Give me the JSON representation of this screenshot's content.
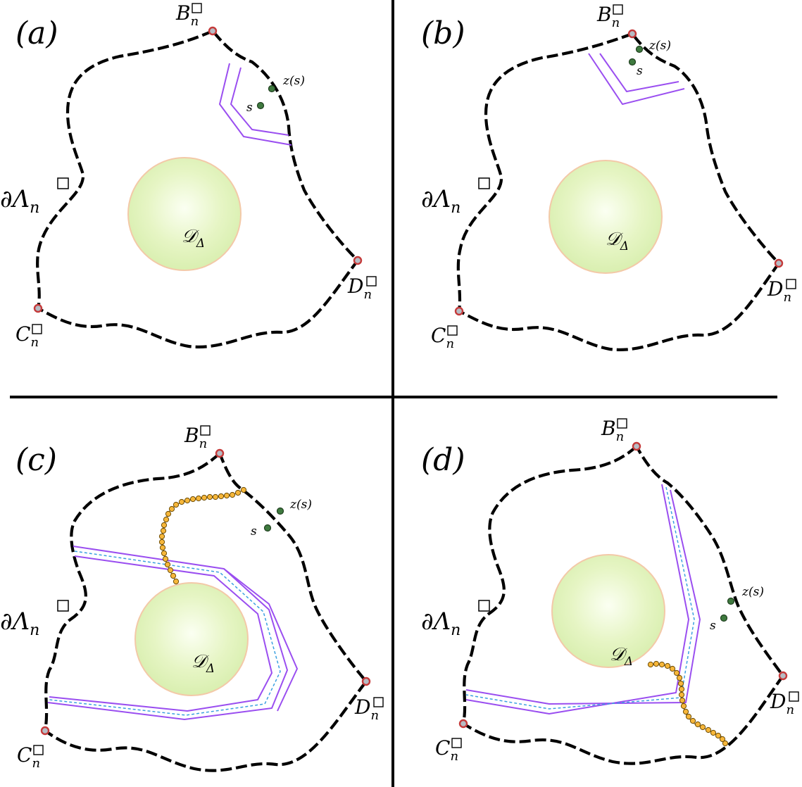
{
  "panels": [
    {
      "id": "a",
      "label": "(a)",
      "corner_b": "B",
      "corner_c": "C",
      "corner_d": "D",
      "corner_sub": "n",
      "boundary_label": "∂Λ",
      "domain_label": "𝒟",
      "domain_sub": "Δ",
      "z_label": "z(s)",
      "s_label": "s"
    },
    {
      "id": "b",
      "label": "(b)",
      "corner_b": "B",
      "corner_c": "C",
      "corner_d": "D",
      "corner_sub": "n",
      "boundary_label": "∂Λ",
      "domain_label": "𝒟",
      "domain_sub": "Δ",
      "z_label": "z(s)",
      "s_label": "s"
    },
    {
      "id": "c",
      "label": "(c)",
      "corner_b": "B",
      "corner_c": "C",
      "corner_d": "D",
      "corner_sub": "n",
      "boundary_label": "∂Λ",
      "domain_label": "𝒟",
      "domain_sub": "Δ",
      "z_label": "z(s)",
      "s_label": "s"
    },
    {
      "id": "d",
      "label": "(d)",
      "corner_b": "B",
      "corner_c": "C",
      "corner_d": "D",
      "corner_sub": "n",
      "boundary_label": "∂Λ",
      "domain_label": "𝒟",
      "domain_sub": "Δ",
      "z_label": "z(s)",
      "s_label": "s"
    }
  ],
  "colors": {
    "boundary": "#000000",
    "strip": "#9a4ef0",
    "midline": "#3aa0e0",
    "disk_fill": "#e6f5c4",
    "walk": "#f7b73a",
    "corner_marker": "#c53a3a",
    "point_marker": "#3f7a3f"
  }
}
